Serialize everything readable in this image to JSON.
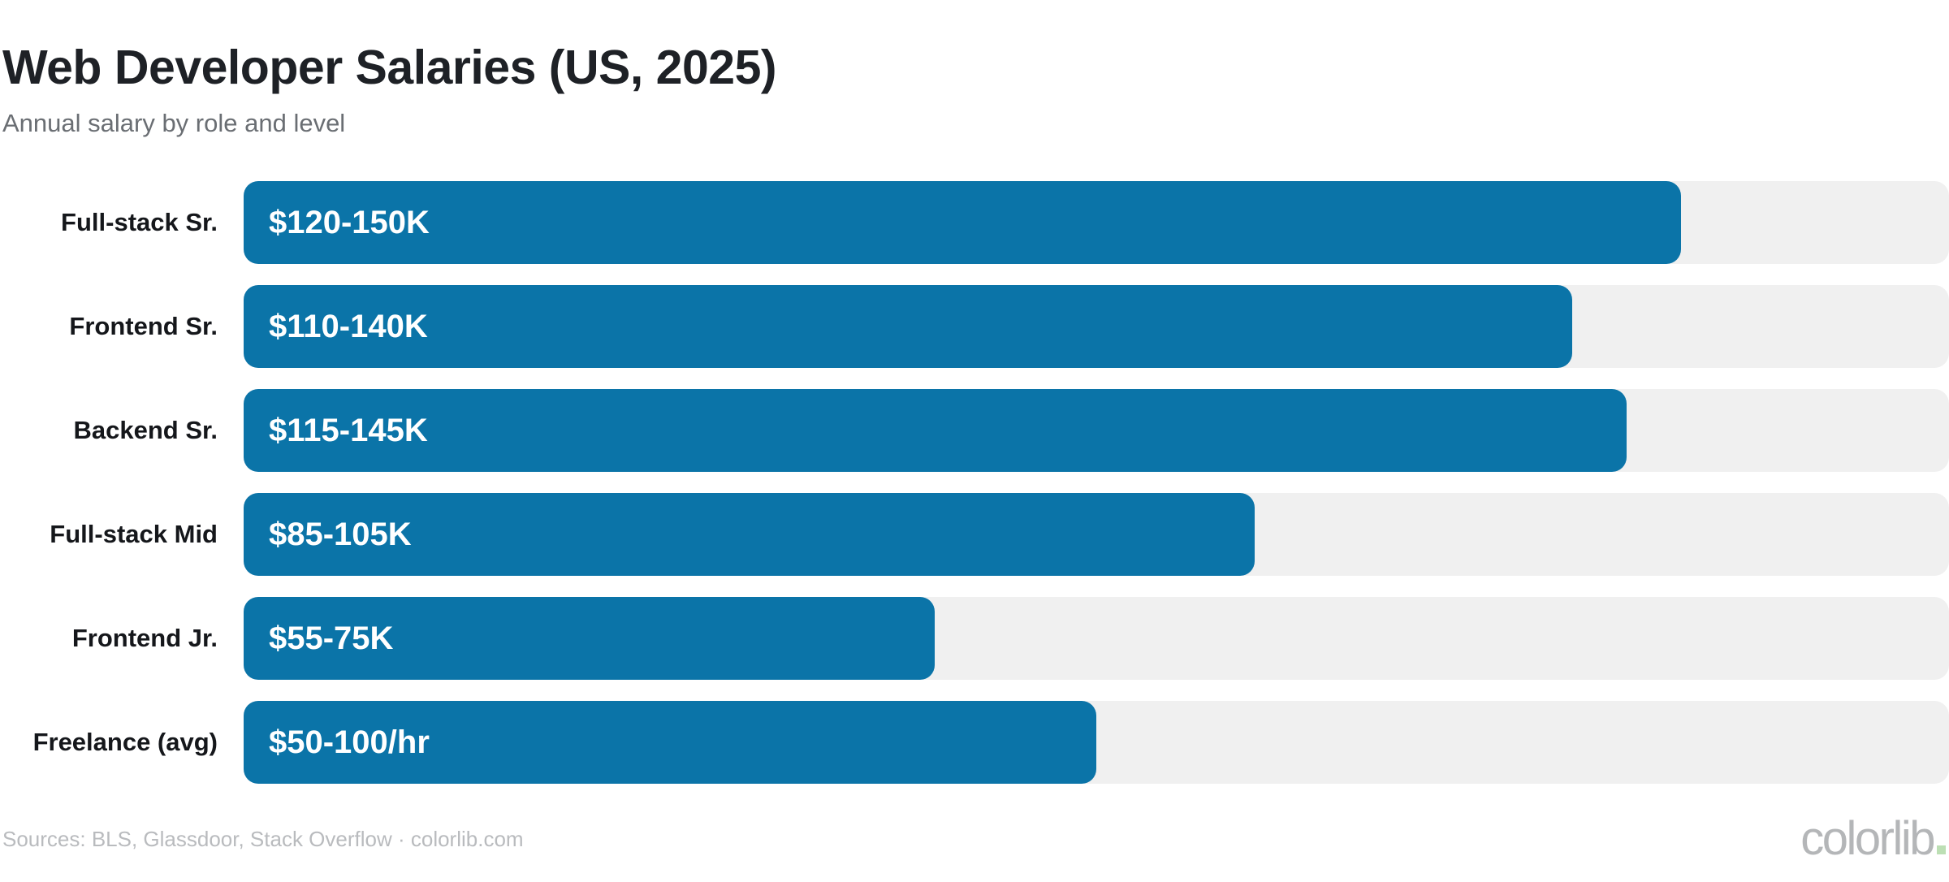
{
  "header": {
    "title": "Web Developer Salaries (US, 2025)",
    "subtitle": "Annual salary by role and level"
  },
  "chart_data": {
    "type": "bar",
    "orientation": "horizontal",
    "title": "Web Developer Salaries (US, 2025)",
    "subtitle": "Annual salary by role and level",
    "grid": false,
    "legend": false,
    "categories": [
      "Full-stack Sr.",
      "Frontend Sr.",
      "Backend Sr.",
      "Full-stack Mid",
      "Frontend Jr.",
      "Freelance (avg)"
    ],
    "value_labels": [
      "$120-150K",
      "$110-140K",
      "$115-145K",
      "$85-105K",
      "$55-75K",
      "$50-100/hr"
    ],
    "values_low": [
      120,
      110,
      115,
      85,
      55,
      50
    ],
    "values_high": [
      150,
      140,
      145,
      105,
      75,
      100
    ],
    "units": [
      "K/yr",
      "K/yr",
      "K/yr",
      "K/yr",
      "K/yr",
      "$/hr"
    ],
    "bar_percent_of_track": [
      84.3,
      77.9,
      81.1,
      59.3,
      40.5,
      50.0
    ],
    "rows": [
      {
        "label": "Full-stack Sr.",
        "value_label": "$120-150K",
        "percent": 84.3
      },
      {
        "label": "Frontend Sr.",
        "value_label": "$110-140K",
        "percent": 77.9
      },
      {
        "label": "Backend Sr.",
        "value_label": "$115-145K",
        "percent": 81.1
      },
      {
        "label": "Full-stack Mid",
        "value_label": "$85-105K",
        "percent": 59.3
      },
      {
        "label": "Frontend Jr.",
        "value_label": "$55-75K",
        "percent": 40.5
      },
      {
        "label": "Freelance (avg)",
        "value_label": "$50-100/hr",
        "percent": 50.0
      }
    ]
  },
  "footer": {
    "sources": "Sources: BLS, Glassdoor, Stack Overflow · colorlib.com",
    "brand": "colorlib"
  },
  "colors": {
    "background": "#ffffff",
    "bar": "#0b74a8",
    "track": "#f0f0f0",
    "title": "#1e2126",
    "subtitle": "#6a6e73",
    "row_label": "#15171b",
    "value_text": "#ffffff",
    "footer_text": "#b9bbbe",
    "logo_text": "#b4b6b8",
    "logo_dot": "#bcdfb4"
  }
}
